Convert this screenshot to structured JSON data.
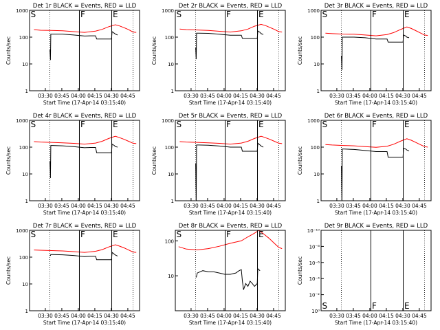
{
  "chart_data": [
    {
      "type": "line",
      "title": "Det 1r BLACK = Events, RED = LLD",
      "xlabel": "Start Time (17-Apr-14 03:15:40)",
      "ylabel": "Counts/sec",
      "y_scale": "log",
      "ylim": [
        1,
        1000
      ],
      "y_tick_labels": [
        "1",
        "10",
        "100",
        "1000"
      ],
      "x_range_min": [
        0,
        100
      ],
      "x_tick_labels": [
        "03:30",
        "03:45",
        "04:00",
        "04:15",
        "04:30",
        "04:45"
      ],
      "x_tick_min": [
        14.33,
        29.33,
        44.33,
        59.33,
        74.33,
        89.33
      ],
      "markers": [
        {
          "label": "S",
          "x_min": 0
        },
        {
          "label": "F",
          "x_min": 45.3
        },
        {
          "label": "E",
          "x_min": 74.7
        }
      ],
      "dotted_lines_x_min": [
        18.5,
        94.0
      ],
      "series": [
        {
          "color": "#ff0000",
          "x_min": [
            4,
            10,
            20,
            30,
            40,
            50,
            60,
            66,
            72,
            78,
            82,
            86,
            90,
            94,
            97
          ],
          "values": [
            190,
            180,
            178,
            172,
            160,
            150,
            168,
            195,
            245,
            290,
            260,
            225,
            190,
            155,
            150
          ]
        },
        {
          "color": "#000000",
          "x_min": [
            18.5,
            19,
            19.3,
            21,
            30,
            40,
            50,
            55,
            60,
            61,
            70,
            74.5,
            75,
            77,
            78,
            80
          ],
          "values": [
            35,
            14,
            130,
            130,
            130,
            120,
            110,
            112,
            112,
            85,
            85,
            85,
            160,
            140,
            130,
            120
          ]
        }
      ]
    },
    {
      "type": "line",
      "title": "Det 2r BLACK = Events, RED = LLD",
      "xlabel": "Start Time (17-Apr-14 03:15:40)",
      "ylabel": "Counts/sec",
      "y_scale": "log",
      "ylim": [
        1,
        1000
      ],
      "y_tick_labels": [
        "1",
        "10",
        "100",
        "1000"
      ],
      "x_range_min": [
        0,
        100
      ],
      "x_tick_labels": [
        "03:30",
        "03:45",
        "04:00",
        "04:15",
        "04:30",
        "04:45"
      ],
      "x_tick_min": [
        14.33,
        29.33,
        44.33,
        59.33,
        74.33,
        89.33
      ],
      "markers": [
        {
          "label": "S",
          "x_min": 0
        },
        {
          "label": "F",
          "x_min": 45.3
        },
        {
          "label": "E",
          "x_min": 74.7
        }
      ],
      "dotted_lines_x_min": [
        18.5,
        94.0
      ],
      "series": [
        {
          "color": "#ff0000",
          "x_min": [
            4,
            10,
            20,
            30,
            40,
            50,
            60,
            66,
            72,
            78,
            82,
            86,
            90,
            94,
            97
          ],
          "values": [
            200,
            190,
            185,
            178,
            165,
            155,
            172,
            200,
            255,
            300,
            270,
            230,
            195,
            160,
            155
          ]
        },
        {
          "color": "#000000",
          "x_min": [
            18.5,
            19,
            19.3,
            21,
            30,
            40,
            50,
            55,
            60,
            61,
            70,
            74.5,
            75,
            77,
            78,
            80
          ],
          "values": [
            40,
            15,
            140,
            140,
            138,
            128,
            118,
            118,
            118,
            90,
            90,
            90,
            170,
            150,
            135,
            125
          ]
        }
      ]
    },
    {
      "type": "line",
      "title": "Det 3r BLACK = Events, RED = LLD",
      "xlabel": "Start Time (17-Apr-14 03:15:40)",
      "ylabel": "Counts/sec",
      "y_scale": "log",
      "ylim": [
        1,
        1000
      ],
      "y_tick_labels": [
        "1",
        "10",
        "100",
        "1000"
      ],
      "x_range_min": [
        0,
        100
      ],
      "x_tick_labels": [
        "03:30",
        "03:45",
        "04:00",
        "04:15",
        "04:30",
        "04:45"
      ],
      "x_tick_min": [
        14.33,
        29.33,
        44.33,
        59.33,
        74.33,
        89.33
      ],
      "markers": [
        {
          "label": "S",
          "x_min": 0
        },
        {
          "label": "F",
          "x_min": 45.3
        },
        {
          "label": "E",
          "x_min": 74.7
        }
      ],
      "dotted_lines_x_min": [
        18.5,
        94.0
      ],
      "series": [
        {
          "color": "#ff0000",
          "x_min": [
            4,
            10,
            20,
            30,
            40,
            50,
            60,
            66,
            72,
            78,
            82,
            86,
            90,
            94,
            97
          ],
          "values": [
            140,
            135,
            130,
            128,
            120,
            112,
            125,
            148,
            190,
            240,
            210,
            175,
            145,
            120,
            115
          ]
        },
        {
          "color": "#000000",
          "x_min": [
            18.5,
            19,
            19.3,
            21,
            30,
            40,
            50,
            55,
            60,
            61,
            70,
            74.5,
            75,
            77,
            78,
            80
          ],
          "values": [
            20,
            6,
            100,
            100,
            100,
            95,
            85,
            85,
            85,
            65,
            65,
            65,
            120,
            110,
            100,
            95
          ]
        }
      ]
    },
    {
      "type": "line",
      "title": "Det 4r BLACK = Events, RED = LLD",
      "xlabel": "Start Time (17-Apr-14 03:15:40)",
      "ylabel": "Counts/sec",
      "y_scale": "log",
      "ylim": [
        1,
        1000
      ],
      "y_tick_labels": [
        "1",
        "10",
        "100",
        "1000"
      ],
      "x_range_min": [
        0,
        100
      ],
      "x_tick_labels": [
        "03:30",
        "03:45",
        "04:00",
        "04:15",
        "04:30",
        "04:45"
      ],
      "x_tick_min": [
        14.33,
        29.33,
        44.33,
        59.33,
        74.33,
        89.33
      ],
      "markers": [
        {
          "label": "S",
          "x_min": 0
        },
        {
          "label": "F",
          "x_min": 45.3
        },
        {
          "label": "E",
          "x_min": 74.7
        }
      ],
      "dotted_lines_x_min": [
        18.5,
        94.0
      ],
      "series": [
        {
          "color": "#ff0000",
          "x_min": [
            4,
            10,
            20,
            30,
            40,
            50,
            60,
            66,
            72,
            78,
            82,
            86,
            90,
            94,
            97
          ],
          "values": [
            160,
            155,
            150,
            145,
            138,
            130,
            142,
            165,
            210,
            255,
            225,
            195,
            165,
            140,
            135
          ]
        },
        {
          "color": "#000000",
          "x_min": [
            18.5,
            19,
            19.3,
            21,
            30,
            40,
            50,
            55,
            60,
            61,
            70,
            74.5,
            75,
            77,
            78,
            80
          ],
          "values": [
            30,
            7,
            115,
            115,
            112,
            105,
            95,
            97,
            97,
            62,
            62,
            62,
            130,
            115,
            105,
            100
          ]
        }
      ]
    },
    {
      "type": "line",
      "title": "Det 5r BLACK = Events, RED = LLD",
      "xlabel": "Start Time (17-Apr-14 03:15:40)",
      "ylabel": "Counts/sec",
      "y_scale": "log",
      "ylim": [
        1,
        1000
      ],
      "y_tick_labels": [
        "1",
        "10",
        "100",
        "1000"
      ],
      "x_range_min": [
        0,
        100
      ],
      "x_tick_labels": [
        "03:30",
        "03:45",
        "04:00",
        "04:15",
        "04:30",
        "04:45"
      ],
      "x_tick_min": [
        14.33,
        29.33,
        44.33,
        59.33,
        74.33,
        89.33
      ],
      "markers": [
        {
          "label": "S",
          "x_min": 0
        },
        {
          "label": "F",
          "x_min": 45.3
        },
        {
          "label": "E",
          "x_min": 74.7
        }
      ],
      "dotted_lines_x_min": [
        18.5,
        94.0
      ],
      "series": [
        {
          "color": "#ff0000",
          "x_min": [
            4,
            10,
            20,
            30,
            40,
            50,
            60,
            66,
            72,
            78,
            82,
            86,
            90,
            94,
            97
          ],
          "values": [
            160,
            155,
            150,
            145,
            138,
            130,
            142,
            165,
            210,
            255,
            225,
            195,
            165,
            140,
            135
          ]
        },
        {
          "color": "#000000",
          "x_min": [
            18.5,
            19,
            19.3,
            21,
            30,
            40,
            50,
            55,
            60,
            61,
            70,
            74.5,
            75,
            77,
            78,
            80
          ],
          "values": [
            25,
            1,
            120,
            120,
            118,
            110,
            100,
            100,
            100,
            70,
            70,
            70,
            140,
            120,
            110,
            100
          ]
        }
      ]
    },
    {
      "type": "line",
      "title": "Det 6r BLACK = Events, RED = LLD",
      "xlabel": "Start Time (17-Apr-14 03:15:40)",
      "ylabel": "Counts/sec",
      "y_scale": "log",
      "ylim": [
        1,
        1000
      ],
      "y_tick_labels": [
        "1",
        "10",
        "100",
        "1000"
      ],
      "x_range_min": [
        0,
        100
      ],
      "x_tick_labels": [
        "03:30",
        "03:45",
        "04:00",
        "04:15",
        "04:30",
        "04:45"
      ],
      "x_tick_min": [
        14.33,
        29.33,
        44.33,
        59.33,
        74.33,
        89.33
      ],
      "markers": [
        {
          "label": "S",
          "x_min": 0
        },
        {
          "label": "F",
          "x_min": 45.3
        },
        {
          "label": "E",
          "x_min": 74.7
        }
      ],
      "dotted_lines_x_min": [
        18.5,
        94.0
      ],
      "series": [
        {
          "color": "#ff0000",
          "x_min": [
            4,
            10,
            20,
            30,
            40,
            50,
            60,
            66,
            72,
            78,
            82,
            86,
            90,
            94,
            97
          ],
          "values": [
            125,
            120,
            115,
            112,
            105,
            98,
            108,
            128,
            165,
            205,
            180,
            150,
            125,
            105,
            100
          ]
        },
        {
          "color": "#000000",
          "x_min": [
            18.5,
            19,
            19.3,
            21,
            30,
            40,
            50,
            55,
            60,
            61,
            70,
            74.5,
            75,
            77,
            78,
            80
          ],
          "values": [
            20,
            1,
            85,
            85,
            82,
            75,
            68,
            68,
            68,
            42,
            42,
            42,
            90,
            85,
            78,
            72
          ]
        }
      ]
    },
    {
      "type": "line",
      "title": "Det 7r BLACK = Events, RED = LLD",
      "xlabel": "Start Time (17-Apr-14 03:15:40)",
      "ylabel": "Counts/sec",
      "y_scale": "log",
      "ylim": [
        1,
        1000
      ],
      "y_tick_labels": [
        "1",
        "10",
        "100",
        "1000"
      ],
      "x_range_min": [
        0,
        100
      ],
      "x_tick_labels": [
        "03:30",
        "03:45",
        "04:00",
        "04:15",
        "04:30",
        "04:45"
      ],
      "x_tick_min": [
        14.33,
        29.33,
        44.33,
        59.33,
        74.33,
        89.33
      ],
      "markers": [
        {
          "label": "S",
          "x_min": 0
        },
        {
          "label": "F",
          "x_min": 45.3
        },
        {
          "label": "E",
          "x_min": 74.7
        }
      ],
      "dotted_lines_x_min": [
        18.5,
        94.0
      ],
      "series": [
        {
          "color": "#ff0000",
          "x_min": [
            4,
            10,
            20,
            30,
            40,
            50,
            60,
            66,
            72,
            78,
            82,
            86,
            90,
            94,
            97
          ],
          "values": [
            185,
            180,
            175,
            170,
            160,
            150,
            165,
            190,
            240,
            290,
            255,
            220,
            185,
            155,
            150
          ]
        },
        {
          "color": "#000000",
          "x_min": [
            18.5,
            19,
            19.3,
            21,
            30,
            40,
            50,
            55,
            60,
            61,
            70,
            74.5,
            75,
            77,
            78,
            80
          ],
          "values": [
            115,
            115,
            125,
            125,
            122,
            115,
            105,
            108,
            108,
            80,
            80,
            80,
            150,
            130,
            120,
            110
          ]
        }
      ]
    },
    {
      "type": "line",
      "title": "Det 8r BLACK = Events, RED = LLD",
      "xlabel": "Start Time (17-Apr-14 03:15:40)",
      "ylabel": "",
      "y_scale": "log",
      "ylim": [
        1,
        200
      ],
      "y_tick_labels": [
        "10",
        "100"
      ],
      "x_range_min": [
        0,
        100
      ],
      "x_tick_labels": [
        "03:30",
        "03:45",
        "04:00",
        "04:15",
        "04:30",
        "04:45"
      ],
      "x_tick_min": [
        14.33,
        29.33,
        44.33,
        59.33,
        74.33,
        89.33
      ],
      "markers": [
        {
          "label": "S",
          "x_min": 0
        },
        {
          "label": "F",
          "x_min": 45.3
        },
        {
          "label": "E",
          "x_min": 74.7
        }
      ],
      "dotted_lines_x_min": [
        18.5,
        94.0
      ],
      "series": [
        {
          "color": "#ff0000",
          "x_min": [
            3,
            10,
            20,
            30,
            40,
            50,
            60,
            66,
            72,
            76,
            80,
            85,
            90,
            94,
            97
          ],
          "values": [
            68,
            58,
            55,
            60,
            70,
            85,
            100,
            130,
            165,
            200,
            160,
            120,
            85,
            65,
            60
          ]
        },
        {
          "color": "#000000",
          "x_min": [
            19,
            20,
            25,
            30,
            35,
            40,
            45,
            50,
            55,
            58,
            60,
            61,
            62,
            64,
            66,
            68,
            70,
            72,
            74.5,
            75,
            77
          ],
          "values": [
            9,
            12,
            14,
            13,
            13,
            12,
            11,
            11,
            12,
            14,
            15,
            7,
            4,
            6,
            5,
            7,
            6,
            5,
            6,
            16,
            14
          ]
        }
      ]
    },
    {
      "type": "line",
      "title": "Det 9r BLACK = Events, RED = LLD",
      "xlabel": "Start Time (17-Apr-14 03:15:40)",
      "ylabel": "Counts/sec",
      "y_scale": "log",
      "ylim": [
        1,
        1e-10
      ],
      "y_tick_labels": [
        "10⁰",
        "10⁻²",
        "10⁻⁴",
        "10⁻⁶",
        "10⁻⁸",
        "10⁻¹⁰"
      ],
      "x_range_min": [
        0,
        100
      ],
      "x_tick_labels": [
        "03:30",
        "03:45",
        "04:00",
        "04:15",
        "04:30",
        "04:45"
      ],
      "x_tick_min": [
        14.33,
        29.33,
        44.33,
        59.33,
        74.33,
        89.33
      ],
      "markers": [
        {
          "label": "S",
          "x_min": 0
        },
        {
          "label": "F",
          "x_min": 45.3
        },
        {
          "label": "E",
          "x_min": 74.7
        }
      ],
      "dotted_lines_x_min": [
        18.5,
        94.0
      ],
      "series": []
    }
  ]
}
